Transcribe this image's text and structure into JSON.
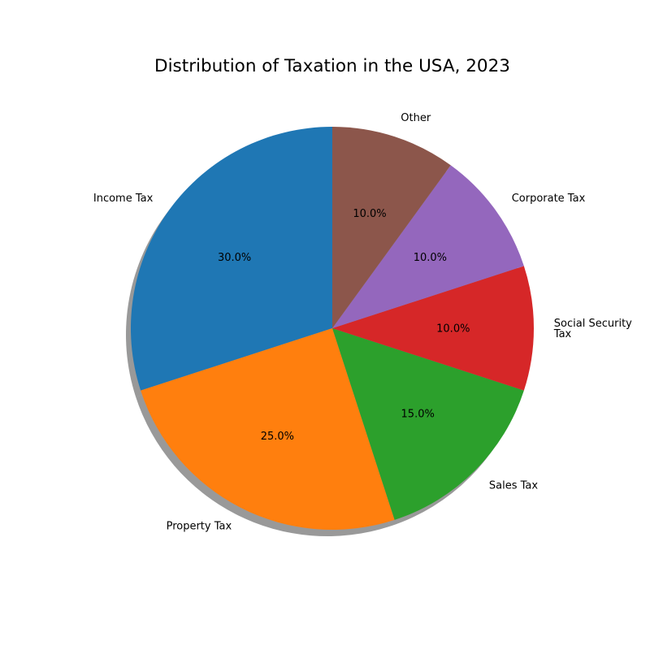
{
  "chart_data": {
    "type": "pie",
    "title": "Distribution of Taxation in the USA, 2023",
    "categories": [
      "Income Tax",
      "Property Tax",
      "Sales Tax",
      "Social Security Tax",
      "Corporate Tax",
      "Other"
    ],
    "label_lines": [
      [
        "Income Tax"
      ],
      [
        "Property Tax"
      ],
      [
        "Sales Tax"
      ],
      [
        "Social Security",
        "Tax"
      ],
      [
        "Corporate Tax"
      ],
      [
        "Other"
      ]
    ],
    "values": [
      30,
      25,
      15,
      10,
      10,
      10
    ],
    "percent_labels": [
      "30.0%",
      "25.0%",
      "15.0%",
      "10.0%",
      "10.0%",
      "10.0%"
    ],
    "colors": [
      "#1f77b4",
      "#ff7f0e",
      "#2ca02c",
      "#d62728",
      "#9467bd",
      "#8c564b"
    ],
    "start_angle_deg": 90,
    "direction": "counterclockwise",
    "shadow": true,
    "legend": "none"
  }
}
